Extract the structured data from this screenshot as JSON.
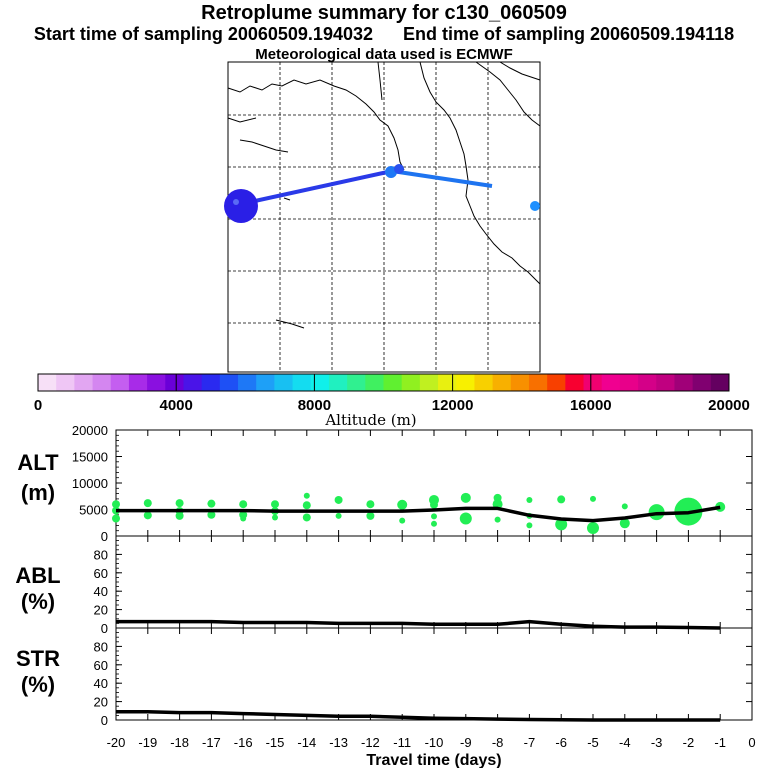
{
  "header": {
    "title": "Retroplume summary for c130_060509",
    "start_label": "Start time of sampling 20060509.194032",
    "end_label": "End time of sampling 20060509.194118",
    "met_label": "Meteorological data used is ECMWF"
  },
  "colors": {
    "dots": "#22ee55",
    "line": "#000000",
    "traj_west": "#2a3ae8",
    "traj_east": "#1e74f0",
    "blob_big": "#2a1fe6",
    "blob_small": "#1e90ff"
  },
  "colorbar": {
    "label": "Altitude (m)",
    "tick_labels": [
      "0",
      "4000",
      "8000",
      "12000",
      "16000",
      "20000"
    ],
    "colors": [
      "#f7e0f7",
      "#efc6f5",
      "#e2a6f2",
      "#d486f0",
      "#c45ef0",
      "#a82be8",
      "#8a10e0",
      "#6a00d8",
      "#4a14e8",
      "#2a2af0",
      "#1e50f5",
      "#1e78f6",
      "#1ea0f7",
      "#18c0f2",
      "#14dcf0",
      "#10f0ea",
      "#20f0c0",
      "#30f090",
      "#40f060",
      "#60f030",
      "#90f020",
      "#c0f020",
      "#e8f010",
      "#f8f000",
      "#f8d000",
      "#f8b000",
      "#f89000",
      "#f87000",
      "#f84000",
      "#f80030",
      "#f00070",
      "#f00090",
      "#e8008a",
      "#d40088",
      "#c00080",
      "#a00078",
      "#800070",
      "#640060"
    ]
  },
  "map_labels": {
    "cluster_icons": [
      "blob-west",
      "blob-coast",
      "blob-east"
    ]
  },
  "chart_data": [
    {
      "type": "line",
      "panel": "ALT",
      "ylabel_line1": "ALT",
      "ylabel_line2": "(m)",
      "ylim": [
        0,
        20000
      ],
      "yticks": [
        "0",
        "5000",
        "10000",
        "15000",
        "20000"
      ],
      "x": [
        -20,
        -19,
        -18,
        -17,
        -16,
        -15,
        -14,
        -13,
        -12,
        -11,
        -10,
        -9,
        -8,
        -7,
        -6,
        -5,
        -4,
        -3,
        -2,
        -1
      ],
      "values": [
        4800,
        4800,
        4800,
        4800,
        4800,
        4700,
        4700,
        4700,
        4700,
        4700,
        4900,
        5200,
        5200,
        3900,
        3200,
        2900,
        3400,
        4200,
        4400,
        5400
      ],
      "scatter": [
        {
          "x": -20,
          "y": 6000,
          "size": 4
        },
        {
          "x": -20,
          "y": 4800,
          "size": 4
        },
        {
          "x": -20,
          "y": 3300,
          "size": 4
        },
        {
          "x": -19,
          "y": 6200,
          "size": 4
        },
        {
          "x": -19,
          "y": 3900,
          "size": 4
        },
        {
          "x": -18,
          "y": 6200,
          "size": 4
        },
        {
          "x": -18,
          "y": 4700,
          "size": 4
        },
        {
          "x": -18,
          "y": 3800,
          "size": 4
        },
        {
          "x": -17,
          "y": 6100,
          "size": 4
        },
        {
          "x": -17,
          "y": 4000,
          "size": 4
        },
        {
          "x": -16,
          "y": 6000,
          "size": 4
        },
        {
          "x": -16,
          "y": 4000,
          "size": 4
        },
        {
          "x": -16,
          "y": 3300,
          "size": 3
        },
        {
          "x": -15,
          "y": 6000,
          "size": 4
        },
        {
          "x": -15,
          "y": 4700,
          "size": 4
        },
        {
          "x": -15,
          "y": 3500,
          "size": 3
        },
        {
          "x": -14,
          "y": 7600,
          "size": 3
        },
        {
          "x": -14,
          "y": 5800,
          "size": 4
        },
        {
          "x": -14,
          "y": 3500,
          "size": 4
        },
        {
          "x": -13,
          "y": 6800,
          "size": 4
        },
        {
          "x": -13,
          "y": 3800,
          "size": 3
        },
        {
          "x": -12,
          "y": 6000,
          "size": 4
        },
        {
          "x": -12,
          "y": 3800,
          "size": 4
        },
        {
          "x": -11,
          "y": 5900,
          "size": 5
        },
        {
          "x": -11,
          "y": 2900,
          "size": 3
        },
        {
          "x": -10,
          "y": 6800,
          "size": 5
        },
        {
          "x": -10,
          "y": 5900,
          "size": 4
        },
        {
          "x": -10,
          "y": 3700,
          "size": 3
        },
        {
          "x": -10,
          "y": 2300,
          "size": 3
        },
        {
          "x": -9,
          "y": 7200,
          "size": 5
        },
        {
          "x": -9,
          "y": 3300,
          "size": 6
        },
        {
          "x": -8,
          "y": 7200,
          "size": 4
        },
        {
          "x": -8,
          "y": 6000,
          "size": 5
        },
        {
          "x": -8,
          "y": 3100,
          "size": 3
        },
        {
          "x": -7,
          "y": 6800,
          "size": 3
        },
        {
          "x": -7,
          "y": 3800,
          "size": 3
        },
        {
          "x": -7,
          "y": 2000,
          "size": 3
        },
        {
          "x": -6,
          "y": 6900,
          "size": 4
        },
        {
          "x": -6,
          "y": 2200,
          "size": 6
        },
        {
          "x": -5,
          "y": 7000,
          "size": 3
        },
        {
          "x": -5,
          "y": 1500,
          "size": 6
        },
        {
          "x": -4,
          "y": 5600,
          "size": 3
        },
        {
          "x": -4,
          "y": 2400,
          "size": 5
        },
        {
          "x": -3,
          "y": 4500,
          "size": 8
        },
        {
          "x": -2,
          "y": 4600,
          "size": 14
        },
        {
          "x": -1,
          "y": 5500,
          "size": 5
        }
      ]
    },
    {
      "type": "line",
      "panel": "ABL",
      "ylabel_line1": "ABL",
      "ylabel_line2": "(%)",
      "ylim": [
        0,
        100
      ],
      "yticks": [
        "0",
        "20",
        "40",
        "60",
        "80"
      ],
      "x": [
        -20,
        -19,
        -18,
        -17,
        -16,
        -15,
        -14,
        -13,
        -12,
        -11,
        -10,
        -9,
        -8,
        -7,
        -6,
        -5,
        -4,
        -3,
        -2,
        -1
      ],
      "values": [
        7,
        7,
        7,
        7,
        6,
        6,
        6,
        5,
        5,
        5,
        4,
        4,
        4,
        7,
        4,
        2,
        1,
        1,
        0.5,
        0
      ]
    },
    {
      "type": "line",
      "panel": "STR",
      "ylabel_line1": "STR",
      "ylabel_line2": "(%)",
      "ylim": [
        0,
        100
      ],
      "yticks": [
        "0",
        "20",
        "40",
        "60",
        "80"
      ],
      "x": [
        -20,
        -19,
        -18,
        -17,
        -16,
        -15,
        -14,
        -13,
        -12,
        -11,
        -10,
        -9,
        -8,
        -7,
        -6,
        -5,
        -4,
        -3,
        -2,
        -1
      ],
      "values": [
        9,
        9,
        8,
        8,
        7,
        6,
        5,
        4,
        4,
        3,
        2,
        1.5,
        1,
        0.5,
        0.2,
        0,
        0,
        0,
        0,
        0
      ],
      "xlabel": "Travel time (days)",
      "xticks": [
        "-20",
        "-19",
        "-18",
        "-17",
        "-16",
        "-15",
        "-14",
        "-13",
        "-12",
        "-11",
        "-10",
        "-9",
        "-8",
        "-7",
        "-6",
        "-5",
        "-4",
        "-3",
        "-2",
        "-1",
        "0"
      ]
    }
  ]
}
